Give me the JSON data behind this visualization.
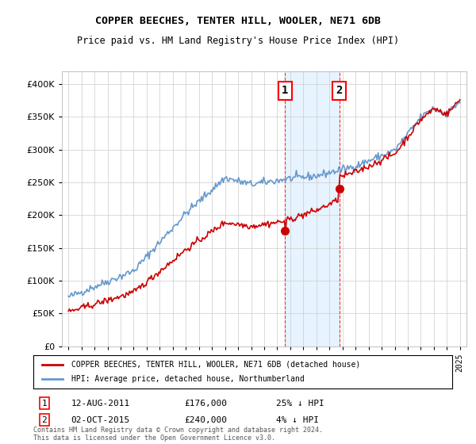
{
  "title": "COPPER BEECHES, TENTER HILL, WOOLER, NE71 6DB",
  "subtitle": "Price paid vs. HM Land Registry's House Price Index (HPI)",
  "hpi_color": "#6699cc",
  "price_color": "#cc0000",
  "background_color": "#ffffff",
  "shade_color": "#ddeeff",
  "grid_color": "#cccccc",
  "legend_label_red": "COPPER BEECHES, TENTER HILL, WOOLER, NE71 6DB (detached house)",
  "legend_label_blue": "HPI: Average price, detached house, Northumberland",
  "annotation1_date": "12-AUG-2011",
  "annotation1_price": "£176,000",
  "annotation1_hpi": "25% ↓ HPI",
  "annotation2_date": "02-OCT-2015",
  "annotation2_price": "£240,000",
  "annotation2_hpi": "4% ↓ HPI",
  "event1_x": 2011.6,
  "event2_x": 2015.75,
  "event1_y": 176000,
  "event2_y": 240000,
  "ylim": [
    0,
    420000
  ],
  "xlim": [
    1994.5,
    2025.5
  ],
  "footnote": "Contains HM Land Registry data © Crown copyright and database right 2024.\nThis data is licensed under the Open Government Licence v3.0."
}
